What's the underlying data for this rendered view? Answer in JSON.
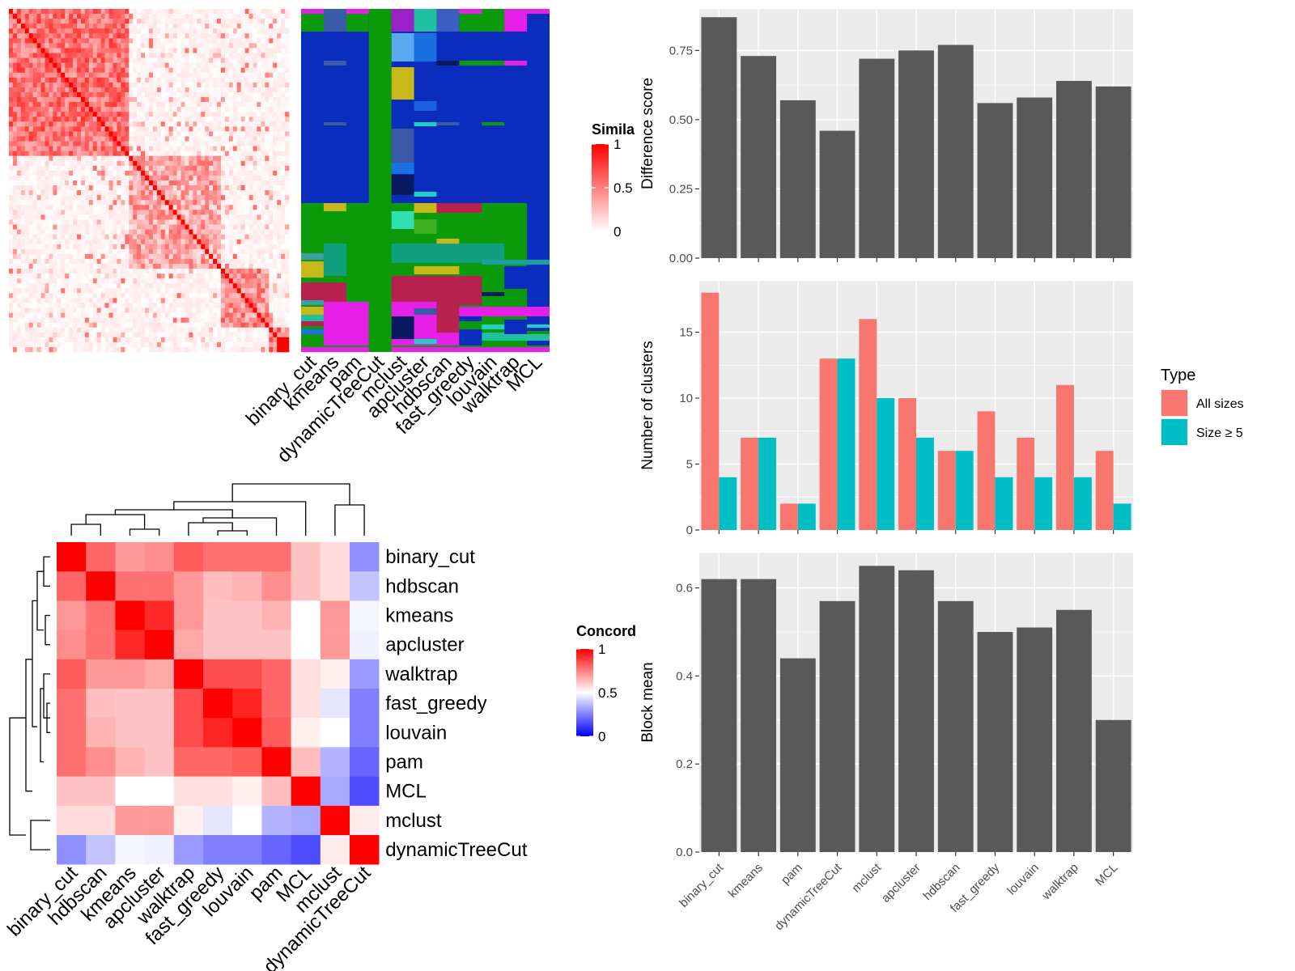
{
  "chart_data": [
    {
      "type": "heatmap",
      "name": "similarity-heatmap",
      "legend_title": "Similarity",
      "legend_title_visible": "Simila",
      "legend_ticks": [
        "1",
        "0.5",
        "0"
      ],
      "colors": {
        "high": "#ff0000",
        "low": "#ffffff"
      },
      "blocks": [
        0.43,
        0.32,
        0.18,
        0.07
      ]
    },
    {
      "type": "heatmap",
      "name": "cluster-assignments",
      "columns": [
        "binary_cut",
        "kmeans",
        "pam",
        "dynamicTreeCut",
        "mclust",
        "apcluster",
        "hdbscan",
        "fast_greedy",
        "louvain",
        "walktrap",
        "MCL"
      ]
    },
    {
      "type": "heatmap",
      "name": "concordance-heatmap",
      "legend_title": "Concordance",
      "legend_title_visible": "Concord",
      "legend_ticks": [
        "1",
        "0.5",
        "0"
      ],
      "colors": {
        "high": "#ff0000",
        "mid": "#ffffff",
        "low": "#0000ff"
      },
      "labels": [
        "binary_cut",
        "hdbscan",
        "kmeans",
        "apcluster",
        "walktrap",
        "fast_greedy",
        "louvain",
        "pam",
        "MCL",
        "mclust",
        "dynamicTreeCut"
      ],
      "matrix": [
        [
          1.0,
          0.8,
          0.7,
          0.72,
          0.82,
          0.78,
          0.78,
          0.78,
          0.62,
          0.57,
          0.28
        ],
        [
          0.8,
          1.0,
          0.78,
          0.78,
          0.7,
          0.63,
          0.65,
          0.72,
          0.62,
          0.57,
          0.38
        ],
        [
          0.7,
          0.78,
          1.0,
          0.92,
          0.7,
          0.62,
          0.62,
          0.65,
          0.5,
          0.7,
          0.48
        ],
        [
          0.72,
          0.78,
          0.92,
          1.0,
          0.67,
          0.62,
          0.62,
          0.62,
          0.5,
          0.7,
          0.47
        ],
        [
          0.82,
          0.7,
          0.7,
          0.67,
          1.0,
          0.85,
          0.85,
          0.8,
          0.56,
          0.53,
          0.3
        ],
        [
          0.78,
          0.63,
          0.62,
          0.62,
          0.85,
          1.0,
          0.93,
          0.8,
          0.56,
          0.45,
          0.25
        ],
        [
          0.78,
          0.65,
          0.62,
          0.62,
          0.85,
          0.93,
          1.0,
          0.82,
          0.53,
          0.5,
          0.25
        ],
        [
          0.78,
          0.72,
          0.65,
          0.62,
          0.8,
          0.8,
          0.82,
          1.0,
          0.63,
          0.35,
          0.2
        ],
        [
          0.62,
          0.62,
          0.5,
          0.5,
          0.56,
          0.56,
          0.53,
          0.63,
          1.0,
          0.33,
          0.15
        ],
        [
          0.57,
          0.57,
          0.7,
          0.7,
          0.53,
          0.45,
          0.5,
          0.35,
          0.33,
          1.0,
          0.54
        ],
        [
          0.28,
          0.38,
          0.48,
          0.47,
          0.3,
          0.25,
          0.25,
          0.2,
          0.15,
          0.54,
          1.0
        ]
      ]
    },
    {
      "type": "bar",
      "name": "difference-score",
      "categories": [
        "binary_cut",
        "kmeans",
        "pam",
        "dynamicTreeCut",
        "mclust",
        "apcluster",
        "hdbscan",
        "fast_greedy",
        "louvain",
        "walktrap",
        "MCL"
      ],
      "values": [
        0.87,
        0.73,
        0.57,
        0.46,
        0.72,
        0.75,
        0.77,
        0.56,
        0.58,
        0.64,
        0.62
      ],
      "ylabel": "Difference score",
      "ylim": [
        0,
        0.9
      ],
      "ticks": [
        "0.00",
        "0.25",
        "0.50",
        "0.75"
      ],
      "grid": true
    },
    {
      "type": "bar",
      "name": "number-of-clusters",
      "categories": [
        "binary_cut",
        "kmeans",
        "pam",
        "dynamicTreeCut",
        "mclust",
        "apcluster",
        "hdbscan",
        "fast_greedy",
        "louvain",
        "walktrap",
        "MCL"
      ],
      "series": [
        {
          "name": "All sizes",
          "values": [
            18,
            7,
            2,
            13,
            16,
            10,
            6,
            9,
            7,
            11,
            6
          ]
        },
        {
          "name": "Size ≥ 5",
          "values": [
            4,
            7,
            2,
            13,
            10,
            7,
            6,
            4,
            4,
            4,
            2
          ]
        }
      ],
      "ylabel": "Number of clusters",
      "ylim": [
        0,
        18.9
      ],
      "ticks": [
        "0",
        "5",
        "10",
        "15"
      ],
      "legend_title": "Type",
      "legend_position": "right",
      "grid": true
    },
    {
      "type": "bar",
      "name": "block-mean",
      "categories": [
        "binary_cut",
        "kmeans",
        "pam",
        "dynamicTreeCut",
        "mclust",
        "apcluster",
        "hdbscan",
        "fast_greedy",
        "louvain",
        "walktrap",
        "MCL"
      ],
      "values": [
        0.62,
        0.62,
        0.44,
        0.57,
        0.65,
        0.64,
        0.57,
        0.5,
        0.51,
        0.55,
        0.3
      ],
      "ylabel": "Block mean",
      "ylim": [
        0,
        0.68
      ],
      "ticks": [
        "0.0",
        "0.2",
        "0.4",
        "0.6"
      ],
      "grid": true
    }
  ],
  "colors": {
    "panel_bg": "#ebebeb",
    "bar": "#595959",
    "series1": "#f8766d",
    "series2": "#00bfc4",
    "grid": "#ffffff",
    "axis_text": "#4d4d4d"
  }
}
